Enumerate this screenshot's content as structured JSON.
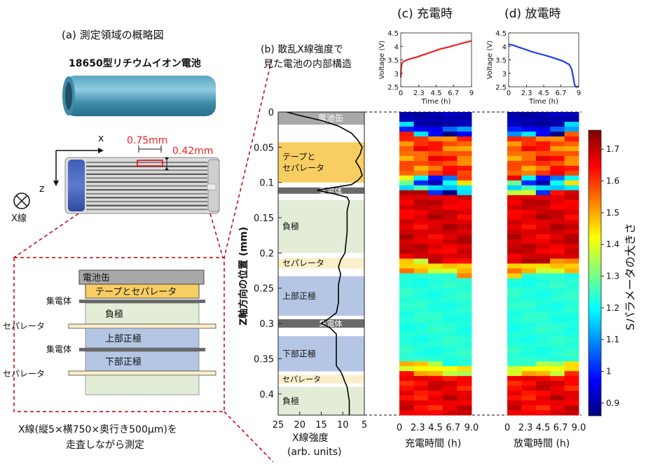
{
  "panel_a": {
    "title": "(a) 測定領域の概略図",
    "battery_label": "18650型リチウムイオン電池",
    "dim_width": "0.75mm",
    "dim_height": "0.42mm",
    "axis_x": "x",
    "axis_z": "z",
    "xray_label": "X線",
    "layers": {
      "can": "電池缶",
      "tape_separator": "テープとセパレータ",
      "collector_1": "集電体",
      "anode": "負極",
      "separator_1": "セパレータ",
      "collector_2": "集電体",
      "upper_cathode": "上部正極",
      "lower_cathode": "下部正極",
      "separator_2": "セパレータ"
    },
    "caption_1": "X線(縦5×横750×奥行き500μm)を",
    "caption_2": "走査しながら測定",
    "colors": {
      "can": "#a9a9a9",
      "tape": "#f8cd62",
      "anode": "#e2ecd7",
      "cathode": "#b4c6e4",
      "separator": "#fbeec9",
      "collector": "#6a6a6a",
      "dashed_red": "#c00000"
    }
  },
  "panel_b": {
    "title_1": "(b) 散乱X線強度で",
    "title_2": "見た電池の内部構造",
    "ylabel": "Z軸方向の位置 (mm)",
    "xlabel_1": "X線強度",
    "xlabel_2": "(arb. units)",
    "bands": [
      {
        "label": "電池缶",
        "z0": 0.0,
        "z1": 0.018,
        "color": "#a9a9a9"
      },
      {
        "label": "テープと\nセパレータ",
        "z0": 0.043,
        "z1": 0.1,
        "color": "#f8cd62"
      },
      {
        "label": "集電体",
        "z0": 0.107,
        "z1": 0.116,
        "color": "#6a6a6a"
      },
      {
        "label": "負極",
        "z0": 0.125,
        "z1": 0.2,
        "color": "#e2ecd7"
      },
      {
        "label": "セパレータ",
        "z0": 0.207,
        "z1": 0.222,
        "color": "#fbeec9"
      },
      {
        "label": "上部正極",
        "z0": 0.233,
        "z1": 0.289,
        "color": "#b4c6e4"
      },
      {
        "label": "集電体",
        "z0": 0.294,
        "z1": 0.306,
        "color": "#6a6a6a"
      },
      {
        "label": "下部正極",
        "z0": 0.318,
        "z1": 0.368,
        "color": "#b4c6e4"
      },
      {
        "label": "セパレータ",
        "z0": 0.373,
        "z1": 0.385,
        "color": "#fbeec9"
      },
      {
        "label": "負極",
        "z0": 0.39,
        "z1": 0.43,
        "color": "#e2ecd7"
      }
    ]
  },
  "panel_c": {
    "title": "(c) 充電時",
    "xlabel": "充電時間 (h)"
  },
  "panel_d": {
    "title": "(d) 放電時",
    "xlabel": "放電時間 (h)"
  },
  "colorbar": {
    "label": "Sパラメータの大きさ"
  },
  "chart_data": [
    {
      "type": "line",
      "id": "xray_intensity_profile",
      "xlabel": "X線強度 (arb. units)",
      "ylabel": "Z軸方向の位置 (mm)",
      "xlim": [
        25,
        5
      ],
      "ylim": [
        0,
        0.43
      ],
      "x_ticks": [
        25,
        20,
        15,
        10,
        5
      ],
      "y_ticks": [
        0,
        0.05,
        0.1,
        0.15,
        0.2,
        0.25,
        0.3,
        0.35,
        0.4
      ],
      "series": [
        {
          "z": [
            0,
            0.005,
            0.012,
            0.02,
            0.03,
            0.04,
            0.05,
            0.06,
            0.07,
            0.08,
            0.09,
            0.097,
            0.103,
            0.107,
            0.111,
            0.116,
            0.121,
            0.127,
            0.14,
            0.17,
            0.2,
            0.21,
            0.22,
            0.23,
            0.245,
            0.27,
            0.285,
            0.292,
            0.3,
            0.306,
            0.315,
            0.33,
            0.36,
            0.368,
            0.375,
            0.383,
            0.39,
            0.41,
            0.43
          ],
          "x": [
            23,
            20,
            15,
            11,
            8,
            6.5,
            5.5,
            6,
            7,
            6,
            5.5,
            6.5,
            8,
            12,
            16,
            12,
            9,
            8.5,
            9,
            9,
            9.5,
            10.5,
            11,
            10.5,
            11,
            11,
            11.5,
            13,
            15,
            13,
            11.5,
            11.5,
            11.5,
            10.5,
            10,
            9.5,
            9,
            8.5,
            8.5
          ]
        }
      ]
    },
    {
      "type": "line",
      "id": "charge_voltage",
      "xlabel": "Time (h)",
      "ylabel": "Voltage (V)",
      "xlim": [
        0,
        9
      ],
      "ylim": [
        2.5,
        4.5
      ],
      "x_ticks": [
        "0",
        "2.3",
        "4.5",
        "6.7",
        "9"
      ],
      "y_ticks": [
        "2.5",
        "3",
        "3.5",
        "4",
        "4.5"
      ],
      "color": "#e8231f",
      "series": [
        {
          "x": [
            0,
            0.05,
            0.15,
            0.4,
            1,
            2,
            3,
            4,
            5,
            6,
            7,
            8,
            9
          ],
          "y": [
            2.85,
            3.2,
            3.38,
            3.45,
            3.52,
            3.6,
            3.7,
            3.8,
            3.9,
            3.97,
            4.05,
            4.13,
            4.2
          ]
        }
      ]
    },
    {
      "type": "line",
      "id": "discharge_voltage",
      "xlabel": "Time (h)",
      "ylabel": "Voltage (V)",
      "xlim": [
        0,
        9
      ],
      "ylim": [
        2.5,
        4.5
      ],
      "x_ticks": [
        "0",
        "2.3",
        "4.5",
        "6.7",
        "9"
      ],
      "y_ticks": [
        "2.5",
        "3",
        "3.5",
        "4",
        "4.5"
      ],
      "color": "#1f3fe8",
      "series": [
        {
          "x": [
            0,
            0.5,
            1,
            2,
            3,
            4,
            5,
            6,
            7,
            7.8,
            8.1,
            8.3,
            8.45,
            8.55,
            8.7,
            9
          ],
          "y": [
            4.08,
            4.05,
            4.0,
            3.9,
            3.8,
            3.72,
            3.64,
            3.55,
            3.45,
            3.32,
            3.15,
            2.85,
            2.6,
            2.52,
            2.5,
            2.5
          ]
        }
      ]
    },
    {
      "type": "heatmap",
      "id": "s_parameter_colorbar",
      "label": "Sパラメータの大きさ",
      "range": [
        0.86,
        1.76
      ],
      "ticks": [
        "0.9",
        "1",
        "1.1",
        "1.2",
        "1.3",
        "1.4",
        "1.5",
        "1.6",
        "1.7"
      ],
      "heatmap_x_ticks": [
        "0",
        "2.3",
        "4.5",
        "6.7",
        "9.0"
      ],
      "colormap": "jet"
    }
  ]
}
